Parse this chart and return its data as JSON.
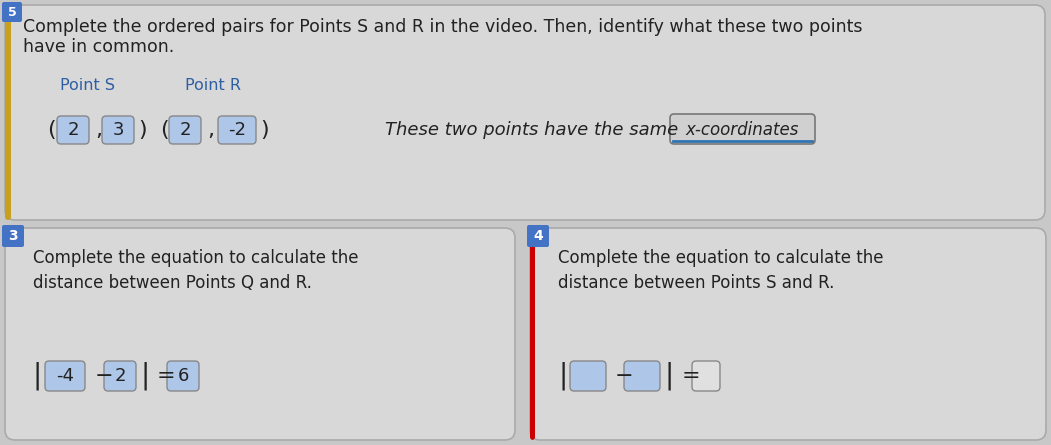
{
  "bg_color": "#c8c8c8",
  "panel_color": "#d8d8d8",
  "title_line1": "Complete the ordered pairs for Points S and R in the video. Then, identify what these two points",
  "title_line2": "have in common.",
  "point_s_label": "Point S",
  "point_r_label": "Point R",
  "point_s_coords": [
    "2",
    "3"
  ],
  "point_r_coords": [
    "2",
    "-2"
  ],
  "common_text": "These two points have the same",
  "common_answer": "x-coordinates",
  "step3_number": "3",
  "step3_line1": "Complete the equation to calculate the",
  "step3_line2": "distance between Points Q and R.",
  "step3_eq_parts": [
    "-4",
    "2",
    "6"
  ],
  "step4_number": "4",
  "step4_line1": "Complete the equation to calculate the",
  "step4_line2": "distance between Points S and R.",
  "divider_color": "#cc0000",
  "blue_bar_color": "#d4a020",
  "step3_badge_color": "#4472c4",
  "step4_badge_color": "#4472c4",
  "step5_badge_color": "#4472c4",
  "coord_box_color": "#aec6e8",
  "coord_box_color2": "#b8cce4",
  "placeholder_box_color": "#aec6e8",
  "result_box_color": "#e0e0e0",
  "answer_box_color": "#d0d0d0",
  "text_dark": "#222222",
  "text_blue": "#2e5fa3",
  "title_fs": 12.5,
  "label_fs": 11.5,
  "body_fs": 12,
  "eq_fs": 13
}
